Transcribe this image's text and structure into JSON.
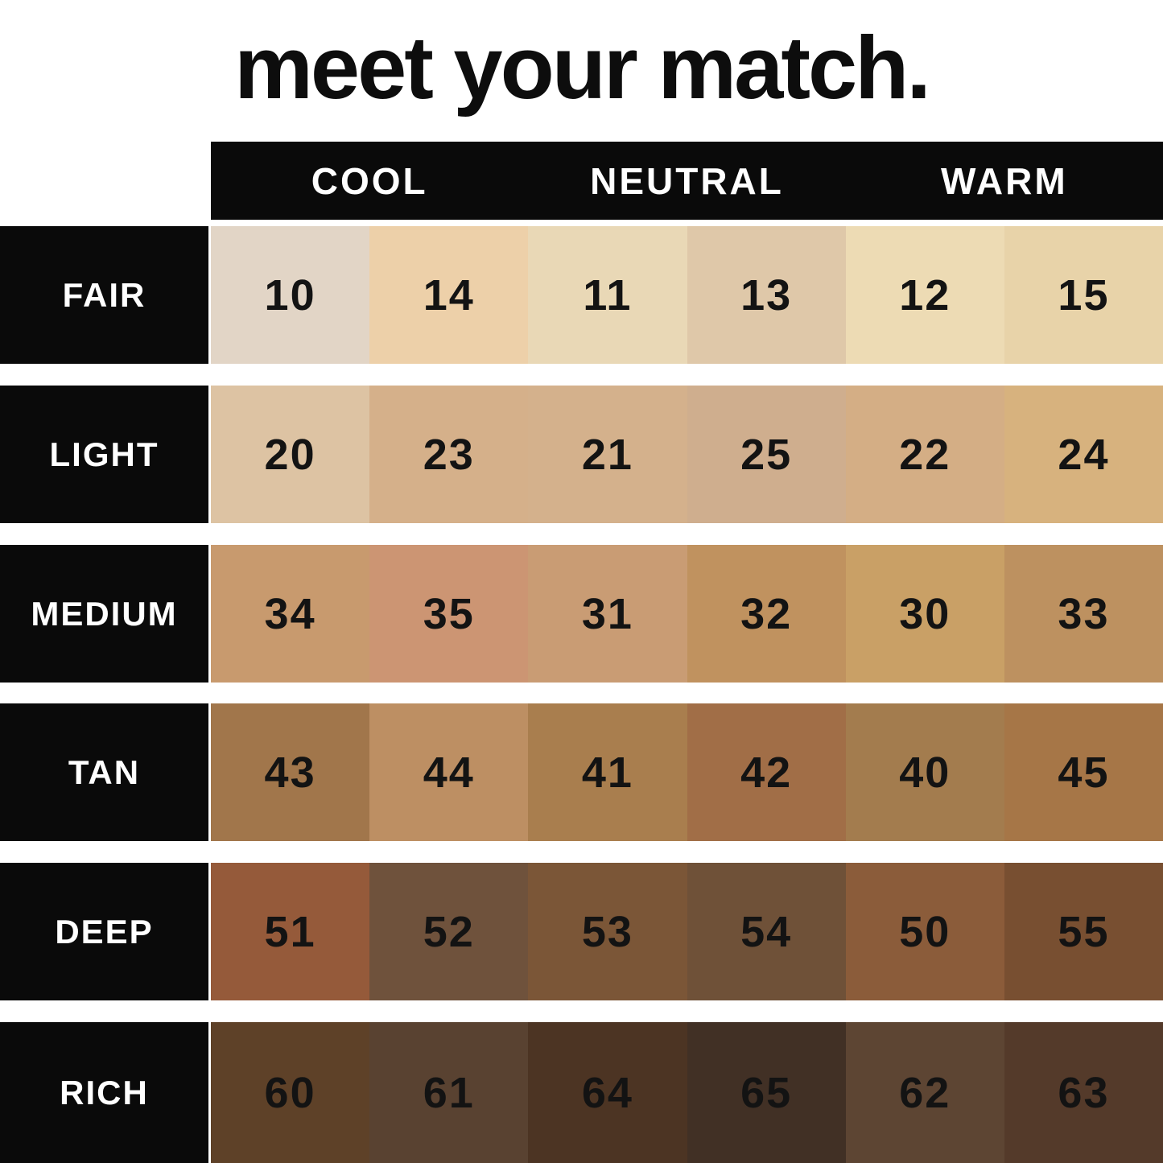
{
  "title": "meet your match.",
  "colors": {
    "background": "#ffffff",
    "bar_black": "#0a0a0a",
    "label_text": "#ffffff",
    "number_text": "#131313"
  },
  "header": {
    "columns": [
      "COOL",
      "NEUTRAL",
      "WARM"
    ]
  },
  "rows": [
    {
      "label": "FAIR",
      "swatches": [
        {
          "shade": "10",
          "color": "#e2d5c6"
        },
        {
          "shade": "14",
          "color": "#edd0a9"
        },
        {
          "shade": "11",
          "color": "#e9d8b6"
        },
        {
          "shade": "13",
          "color": "#dfc8a9"
        },
        {
          "shade": "12",
          "color": "#eddbb4"
        },
        {
          "shade": "15",
          "color": "#e8d3a9"
        }
      ]
    },
    {
      "label": "LIGHT",
      "swatches": [
        {
          "shade": "20",
          "color": "#ddc3a3"
        },
        {
          "shade": "23",
          "color": "#d5b08a"
        },
        {
          "shade": "21",
          "color": "#d4b18c"
        },
        {
          "shade": "25",
          "color": "#cfae8e"
        },
        {
          "shade": "22",
          "color": "#d4ae85"
        },
        {
          "shade": "24",
          "color": "#d7b27e"
        }
      ]
    },
    {
      "label": "MEDIUM",
      "swatches": [
        {
          "shade": "34",
          "color": "#c89a6e"
        },
        {
          "shade": "35",
          "color": "#cc9573"
        },
        {
          "shade": "31",
          "color": "#c99c74"
        },
        {
          "shade": "32",
          "color": "#c0925f"
        },
        {
          "shade": "30",
          "color": "#c9a066"
        },
        {
          "shade": "33",
          "color": "#bd9160"
        }
      ]
    },
    {
      "label": "TAN",
      "swatches": [
        {
          "shade": "43",
          "color": "#a1764b"
        },
        {
          "shade": "44",
          "color": "#bd8f63"
        },
        {
          "shade": "41",
          "color": "#a97e4e"
        },
        {
          "shade": "42",
          "color": "#a16e47"
        },
        {
          "shade": "40",
          "color": "#a37c4e"
        },
        {
          "shade": "45",
          "color": "#a67647"
        }
      ]
    },
    {
      "label": "DEEP",
      "swatches": [
        {
          "shade": "51",
          "color": "#955a3a"
        },
        {
          "shade": "52",
          "color": "#6f523c"
        },
        {
          "shade": "53",
          "color": "#7b5637"
        },
        {
          "shade": "54",
          "color": "#6f5138"
        },
        {
          "shade": "50",
          "color": "#8b5c3a"
        },
        {
          "shade": "55",
          "color": "#784f31"
        }
      ]
    },
    {
      "label": "RICH",
      "swatches": [
        {
          "shade": "60",
          "color": "#5e4128"
        },
        {
          "shade": "61",
          "color": "#594231"
        },
        {
          "shade": "64",
          "color": "#4c3423"
        },
        {
          "shade": "65",
          "color": "#413025"
        },
        {
          "shade": "62",
          "color": "#5d4533"
        },
        {
          "shade": "63",
          "color": "#543a2a"
        }
      ]
    }
  ],
  "chart_data": {
    "type": "table",
    "title": "meet your match.",
    "column_groups": [
      "COOL",
      "NEUTRAL",
      "WARM"
    ],
    "columns_per_group": 2,
    "row_labels": [
      "FAIR",
      "LIGHT",
      "MEDIUM",
      "TAN",
      "DEEP",
      "RICH"
    ],
    "cells": [
      [
        "10",
        "14",
        "11",
        "13",
        "12",
        "15"
      ],
      [
        "20",
        "23",
        "21",
        "25",
        "22",
        "24"
      ],
      [
        "34",
        "35",
        "31",
        "32",
        "30",
        "33"
      ],
      [
        "43",
        "44",
        "41",
        "42",
        "40",
        "45"
      ],
      [
        "51",
        "52",
        "53",
        "54",
        "50",
        "55"
      ],
      [
        "60",
        "61",
        "64",
        "65",
        "62",
        "63"
      ]
    ],
    "cell_colors": [
      [
        "#e2d5c6",
        "#edd0a9",
        "#e9d8b6",
        "#dfc8a9",
        "#eddbb4",
        "#e8d3a9"
      ],
      [
        "#ddc3a3",
        "#d5b08a",
        "#d4b18c",
        "#cfae8e",
        "#d4ae85",
        "#d7b27e"
      ],
      [
        "#c89a6e",
        "#cc9573",
        "#c99c74",
        "#c0925f",
        "#c9a066",
        "#bd9160"
      ],
      [
        "#a1764b",
        "#bd8f63",
        "#a97e4e",
        "#a16e47",
        "#a37c4e",
        "#a67647"
      ],
      [
        "#955a3a",
        "#6f523c",
        "#7b5637",
        "#6f5138",
        "#8b5c3a",
        "#784f31"
      ],
      [
        "#5e4128",
        "#594231",
        "#4c3423",
        "#413025",
        "#5d4533",
        "#543a2a"
      ]
    ]
  }
}
